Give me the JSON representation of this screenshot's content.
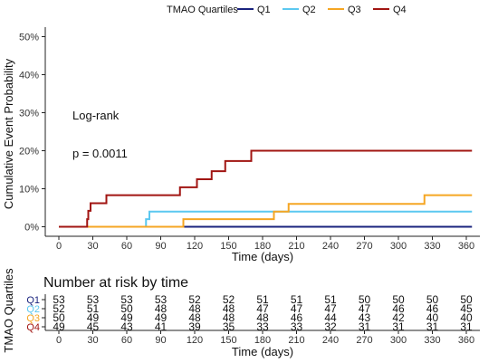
{
  "chart_data": {
    "type": "line",
    "step": true,
    "legend": {
      "title": "TMAO Quartiles",
      "position": "top",
      "entries": [
        {
          "name": "Q1",
          "color": "#1a237e"
        },
        {
          "name": "Q2",
          "color": "#5bc8f0"
        },
        {
          "name": "Q3",
          "color": "#f5a623"
        },
        {
          "name": "Q4",
          "color": "#a11512"
        }
      ]
    },
    "xlabel": "Time (days)",
    "ylabel": "Cumulative Event Probability",
    "xlim": [
      -12,
      372
    ],
    "ylim": [
      -0.025,
      0.525
    ],
    "x_ticks": [
      0,
      30,
      60,
      90,
      120,
      150,
      180,
      210,
      240,
      270,
      300,
      330,
      360
    ],
    "y_ticks": [
      0,
      0.1,
      0.2,
      0.3,
      0.4,
      0.5
    ],
    "y_tick_labels": [
      "0%",
      "10%",
      "20%",
      "30%",
      "40%",
      "50%"
    ],
    "grid": false,
    "annotations": [
      "Log-rank",
      "p = 0.0011"
    ],
    "series": [
      {
        "name": "Q1",
        "color": "#1a237e",
        "steps": [
          [
            0,
            0
          ],
          [
            365,
            0
          ]
        ]
      },
      {
        "name": "Q2",
        "color": "#5bc8f0",
        "steps": [
          [
            0,
            0
          ],
          [
            77,
            0.02
          ],
          [
            80,
            0.04
          ],
          [
            365,
            0.04
          ]
        ]
      },
      {
        "name": "Q3",
        "color": "#f5a623",
        "steps": [
          [
            0,
            0
          ],
          [
            110,
            0.02
          ],
          [
            190,
            0.04
          ],
          [
            203,
            0.06
          ],
          [
            323,
            0.083
          ],
          [
            365,
            0.083
          ]
        ]
      },
      {
        "name": "Q4",
        "color": "#a11512",
        "steps": [
          [
            0,
            0
          ],
          [
            25,
            0.02
          ],
          [
            26,
            0.042
          ],
          [
            28,
            0.062
          ],
          [
            42,
            0.083
          ],
          [
            107,
            0.104
          ],
          [
            122,
            0.125
          ],
          [
            135,
            0.146
          ],
          [
            147,
            0.173
          ],
          [
            170,
            0.2
          ],
          [
            365,
            0.2
          ]
        ]
      }
    ],
    "risk_table": {
      "title": "Number at risk by time",
      "ylabel": "TMAO Quartiles",
      "xlabel": "Time (days)",
      "times": [
        0,
        30,
        60,
        90,
        120,
        150,
        180,
        210,
        240,
        270,
        300,
        330,
        360
      ],
      "rows": [
        {
          "name": "Q1",
          "color": "#1a237e",
          "values": [
            53,
            53,
            53,
            53,
            52,
            52,
            51,
            51,
            51,
            50,
            50,
            50,
            50
          ]
        },
        {
          "name": "Q2",
          "color": "#5bc8f0",
          "values": [
            52,
            51,
            50,
            48,
            48,
            48,
            47,
            47,
            47,
            47,
            46,
            46,
            45
          ]
        },
        {
          "name": "Q3",
          "color": "#f5a623",
          "values": [
            50,
            49,
            49,
            49,
            48,
            48,
            48,
            46,
            44,
            43,
            42,
            40,
            40
          ]
        },
        {
          "name": "Q4",
          "color": "#a11512",
          "values": [
            49,
            45,
            43,
            41,
            39,
            35,
            33,
            33,
            32,
            31,
            31,
            31,
            31
          ]
        }
      ]
    }
  }
}
